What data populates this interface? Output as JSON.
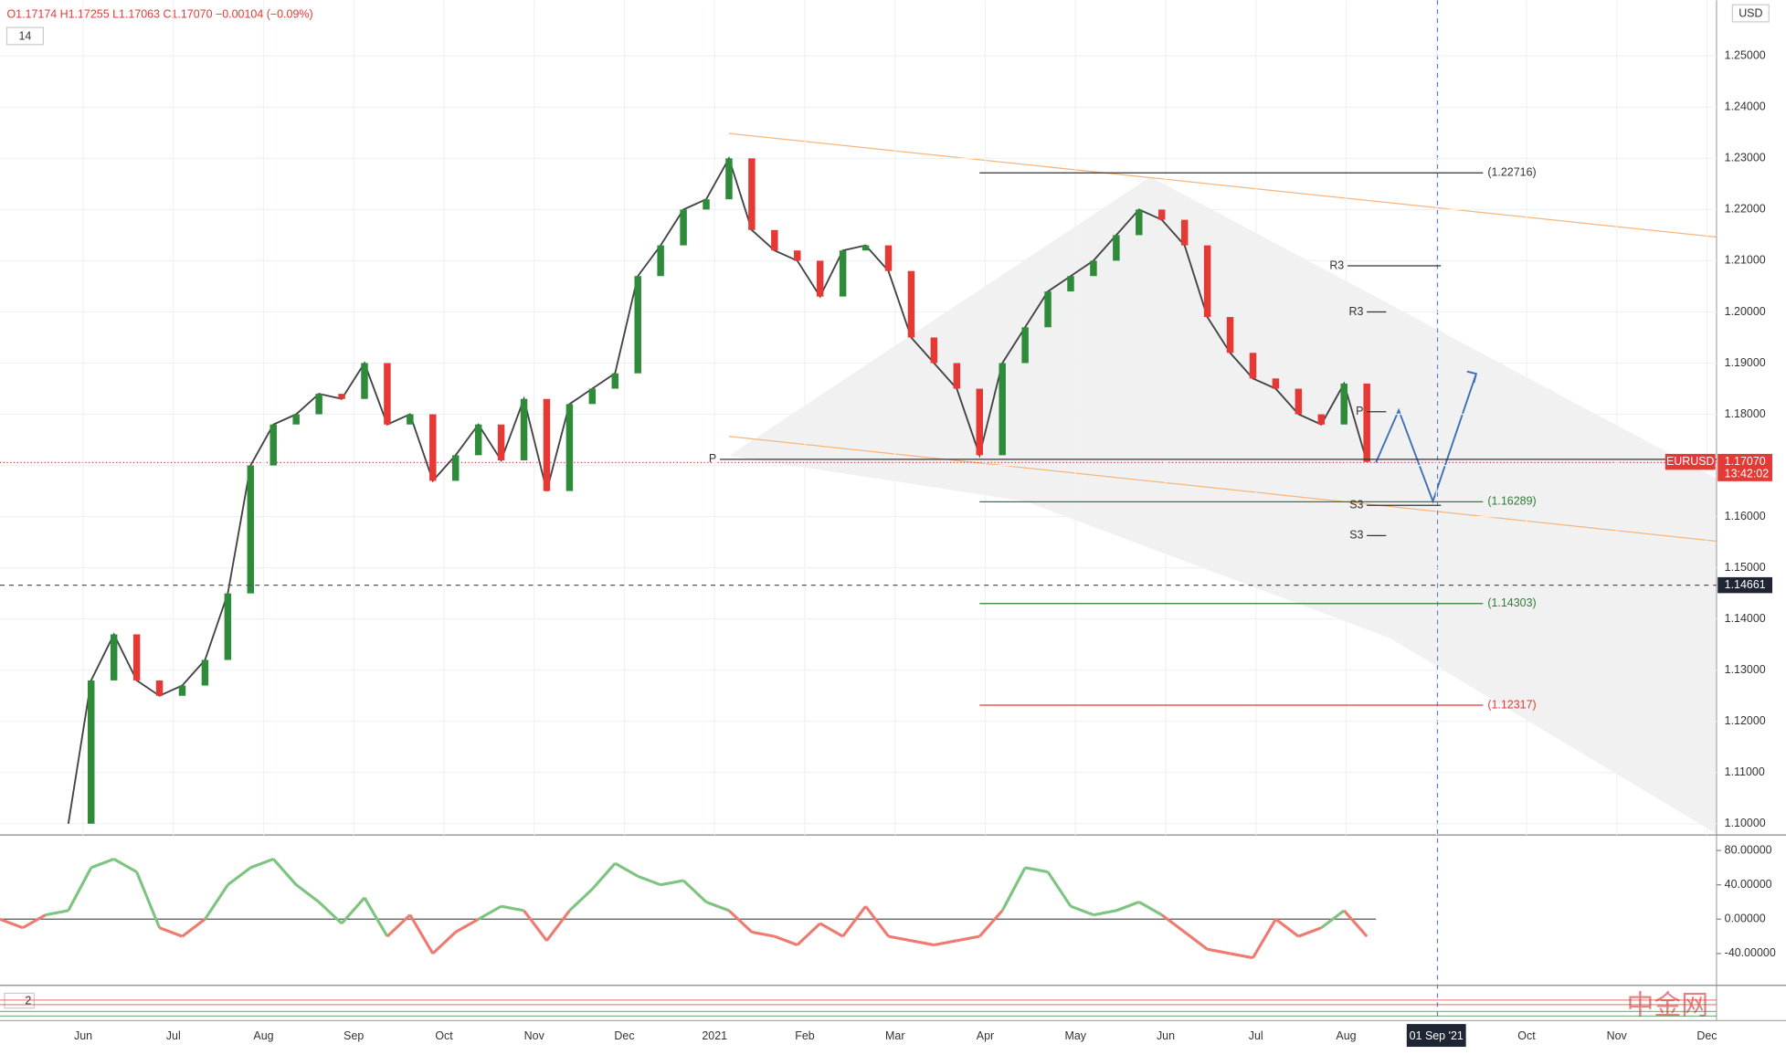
{
  "header": {
    "ohlc": "O1.17174 H1.17255 L1.17063 C1.17070 −0.00104 (−0.09%)",
    "indicator": "14",
    "currency": "USD"
  },
  "chart_data": {
    "type": "line",
    "color": "#444444",
    "values": [
      1.1,
      1.128,
      1.137,
      1.128,
      1.125,
      1.127,
      1.132,
      1.145,
      1.17,
      1.178,
      1.18,
      1.184,
      1.183,
      1.19,
      1.178,
      1.18,
      1.167,
      1.172,
      1.178,
      1.171,
      1.183,
      1.165,
      1.182,
      1.185,
      1.188,
      1.207,
      1.213,
      1.22,
      1.222,
      1.23,
      1.216,
      1.212,
      1.21,
      1.203,
      1.212,
      1.213,
      1.208,
      1.195,
      1.19,
      1.185,
      1.172,
      1.19,
      1.197,
      1.204,
      1.207,
      1.21,
      1.215,
      1.22,
      1.218,
      1.213,
      1.199,
      1.192,
      1.187,
      1.185,
      1.18,
      1.178,
      1.186,
      1.1707
    ],
    "ylim": [
      1.0978,
      1.2609
    ],
    "yticks": [
      {
        "value": 1.1,
        "label": "1.10000"
      },
      {
        "value": 1.11,
        "label": "1.11000"
      },
      {
        "value": 1.12,
        "label": "1.12000"
      },
      {
        "value": 1.13,
        "label": "1.13000"
      },
      {
        "value": 1.14,
        "label": "1.14000"
      },
      {
        "value": 1.15,
        "label": "1.15000"
      },
      {
        "value": 1.16,
        "label": "1.16000"
      },
      {
        "value": 1.17,
        "label": "1.17000"
      },
      {
        "value": 1.18,
        "label": "1.18000"
      },
      {
        "value": 1.19,
        "label": "1.19000"
      },
      {
        "value": 1.2,
        "label": "1.20000"
      },
      {
        "value": 1.21,
        "label": "1.21000"
      },
      {
        "value": 1.22,
        "label": "1.22000"
      },
      {
        "value": 1.23,
        "label": "1.23000"
      },
      {
        "value": 1.24,
        "label": "1.24000"
      },
      {
        "value": 1.25,
        "label": "1.25000"
      }
    ],
    "xticks": [
      "Jun",
      "Jul",
      "Aug",
      "Sep",
      "Oct",
      "Nov",
      "Dec",
      "2021",
      "Feb",
      "Mar",
      "Apr",
      "May",
      "Jun",
      "Jul",
      "Aug",
      "01 Sep '21",
      "Oct",
      "Nov",
      "Dec"
    ],
    "levels": [
      {
        "value": 1.22716,
        "label": "(1.22716)",
        "color": "#333333"
      },
      {
        "value": 1.16289,
        "label": "(1.16289)",
        "color": "#2e7d32"
      },
      {
        "value": 1.14303,
        "label": "(1.14303)",
        "color": "#2e7d32"
      },
      {
        "value": 1.12317,
        "label": "(1.12317)",
        "color": "#e53935"
      },
      {
        "value": 1.209,
        "label": "R3",
        "color": "#333333"
      },
      {
        "value": 1.2,
        "label": "R3",
        "color": "#333333"
      },
      {
        "value": 1.1805,
        "label": "P",
        "color": "#333333"
      },
      {
        "value": 1.1712,
        "label": "P",
        "color": "#333333"
      },
      {
        "value": 1.1622,
        "label": "S3",
        "color": "#333333"
      },
      {
        "value": 1.1563,
        "label": "S3",
        "color": "#333333"
      }
    ],
    "symbol": "EURUSD",
    "last": {
      "value": 1.1707,
      "label": "1.17070"
    },
    "countdown": "13:42:02",
    "crosshair": {
      "value": 1.14661,
      "label": "1.14661"
    },
    "oscillator": {
      "values": [
        0,
        -10,
        5,
        10,
        60,
        70,
        55,
        -10,
        -20,
        0,
        40,
        60,
        70,
        40,
        20,
        -5,
        25,
        -20,
        5,
        -40,
        -15,
        0,
        15,
        10,
        -25,
        10,
        35,
        65,
        50,
        40,
        45,
        20,
        10,
        -15,
        -20,
        -30,
        -5,
        -20,
        15,
        -20,
        -25,
        -30,
        -25,
        -20,
        10,
        60,
        55,
        15,
        5,
        10,
        20,
        5,
        -15,
        -35,
        -40,
        -45,
        0,
        -20,
        -10,
        10,
        -20
      ],
      "ylim": [
        -77,
        98
      ],
      "yticks": [
        {
          "value": 80,
          "label": "80.00000"
        },
        {
          "value": 40,
          "label": "40.00000"
        },
        {
          "value": 0,
          "label": "0.00000"
        },
        {
          "value": -40,
          "label": "-40.00000"
        }
      ],
      "up_color": "#7cc47f",
      "down_color": "#ef7a70"
    },
    "panel2_label": "2"
  },
  "watermark": "中金网"
}
